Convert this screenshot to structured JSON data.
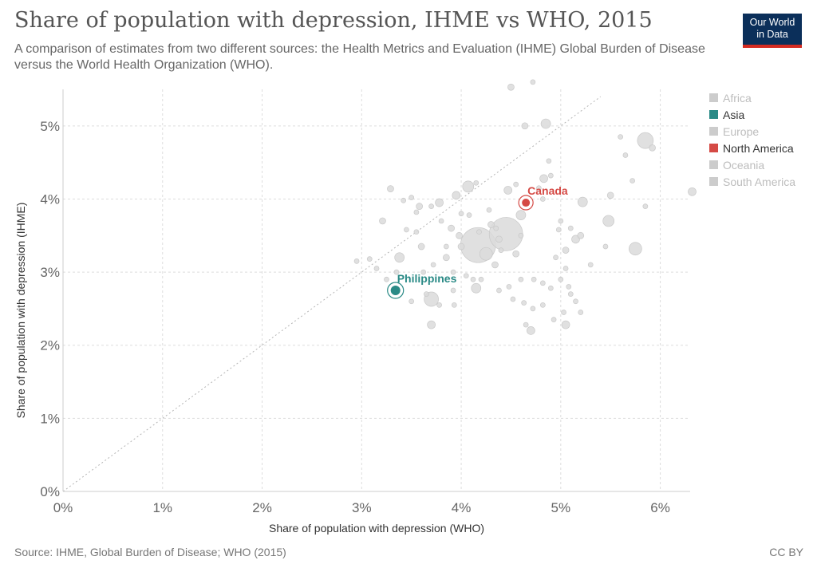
{
  "header": {
    "title": "Share of population with depression, IHME vs WHO, 2015",
    "subtitle": "A comparison of estimates from two different sources: the Health Metrics and Evaluation (IHME) Global Burden of Disease versus the World Health Organization (WHO).",
    "logo_line1": "Our World",
    "logo_line2": "in Data"
  },
  "footer": {
    "source": "Source: IHME, Global Burden of Disease; WHO (2015)",
    "license": "CC BY"
  },
  "legend": {
    "items": [
      {
        "label": "Africa",
        "color": "#cccccc",
        "active": false
      },
      {
        "label": "Asia",
        "color": "#2a8a86",
        "active": true
      },
      {
        "label": "Europe",
        "color": "#cccccc",
        "active": false
      },
      {
        "label": "North America",
        "color": "#d54a45",
        "active": true
      },
      {
        "label": "Oceania",
        "color": "#cccccc",
        "active": false
      },
      {
        "label": "South America",
        "color": "#cccccc",
        "active": false
      }
    ]
  },
  "chart_data": {
    "type": "scatter",
    "xlabel": "Share of population with depression (WHO)",
    "ylabel": "Share of population with depression (IHME)",
    "xlim": [
      0,
      6.3
    ],
    "ylim": [
      0,
      5.5
    ],
    "x_ticks": [
      "0%",
      "1%",
      "2%",
      "3%",
      "4%",
      "5%",
      "6%"
    ],
    "y_ticks": [
      "0%",
      "1%",
      "2%",
      "3%",
      "4%",
      "5%"
    ],
    "grid": true,
    "diagonal_reference": true,
    "highlighted": [
      {
        "name": "Canada",
        "x": 4.65,
        "y": 3.95,
        "color": "#d54a45",
        "r": 5
      },
      {
        "name": "Philippines",
        "x": 3.34,
        "y": 2.75,
        "color": "#2a8a86",
        "r": 6
      }
    ],
    "points": [
      {
        "x": 4.17,
        "y": 3.37,
        "r": 22
      },
      {
        "x": 4.45,
        "y": 3.52,
        "r": 21
      },
      {
        "x": 4.25,
        "y": 3.25,
        "r": 8
      },
      {
        "x": 3.7,
        "y": 2.63,
        "r": 9
      },
      {
        "x": 5.85,
        "y": 4.8,
        "r": 10
      },
      {
        "x": 5.75,
        "y": 3.32,
        "r": 8
      },
      {
        "x": 5.48,
        "y": 3.7,
        "r": 7
      },
      {
        "x": 4.07,
        "y": 4.17,
        "r": 7
      },
      {
        "x": 4.85,
        "y": 5.03,
        "r": 6
      },
      {
        "x": 4.15,
        "y": 2.78,
        "r": 6
      },
      {
        "x": 3.38,
        "y": 3.2,
        "r": 6
      },
      {
        "x": 3.78,
        "y": 3.95,
        "r": 5
      },
      {
        "x": 3.95,
        "y": 4.05,
        "r": 5
      },
      {
        "x": 4.6,
        "y": 3.78,
        "r": 6
      },
      {
        "x": 4.83,
        "y": 4.28,
        "r": 5
      },
      {
        "x": 4.7,
        "y": 2.2,
        "r": 5
      },
      {
        "x": 5.22,
        "y": 3.96,
        "r": 6
      },
      {
        "x": 5.05,
        "y": 2.28,
        "r": 5
      },
      {
        "x": 4.47,
        "y": 4.12,
        "r": 5
      },
      {
        "x": 3.7,
        "y": 2.28,
        "r": 5
      },
      {
        "x": 3.21,
        "y": 3.7,
        "r": 4
      },
      {
        "x": 3.29,
        "y": 4.14,
        "r": 4
      },
      {
        "x": 4.5,
        "y": 5.53,
        "r": 4
      },
      {
        "x": 4.64,
        "y": 5.0,
        "r": 4
      },
      {
        "x": 6.32,
        "y": 4.1,
        "r": 5
      },
      {
        "x": 5.92,
        "y": 4.7,
        "r": 4
      },
      {
        "x": 5.15,
        "y": 3.45,
        "r": 5
      },
      {
        "x": 5.2,
        "y": 3.5,
        "r": 4
      },
      {
        "x": 5.05,
        "y": 3.3,
        "r": 4
      },
      {
        "x": 5.5,
        "y": 4.05,
        "r": 4
      },
      {
        "x": 3.58,
        "y": 3.9,
        "r": 4
      },
      {
        "x": 3.9,
        "y": 3.6,
        "r": 4
      },
      {
        "x": 3.98,
        "y": 3.5,
        "r": 4
      },
      {
        "x": 4.0,
        "y": 3.35,
        "r": 4
      },
      {
        "x": 4.34,
        "y": 3.1,
        "r": 4
      },
      {
        "x": 4.38,
        "y": 3.45,
        "r": 4
      },
      {
        "x": 4.55,
        "y": 3.25,
        "r": 4
      },
      {
        "x": 4.3,
        "y": 3.65,
        "r": 4
      },
      {
        "x": 3.85,
        "y": 3.2,
        "r": 4
      },
      {
        "x": 3.6,
        "y": 3.35,
        "r": 4
      },
      {
        "x": 3.45,
        "y": 3.58,
        "r": 3
      },
      {
        "x": 3.55,
        "y": 3.82,
        "r": 3
      },
      {
        "x": 3.62,
        "y": 3.0,
        "r": 3
      },
      {
        "x": 3.72,
        "y": 3.1,
        "r": 3
      },
      {
        "x": 3.92,
        "y": 3.0,
        "r": 3
      },
      {
        "x": 4.12,
        "y": 2.9,
        "r": 3
      },
      {
        "x": 4.2,
        "y": 2.9,
        "r": 3
      },
      {
        "x": 4.05,
        "y": 2.95,
        "r": 3
      },
      {
        "x": 4.48,
        "y": 2.8,
        "r": 3
      },
      {
        "x": 4.6,
        "y": 2.9,
        "r": 3
      },
      {
        "x": 4.73,
        "y": 2.9,
        "r": 3
      },
      {
        "x": 4.82,
        "y": 2.85,
        "r": 3
      },
      {
        "x": 4.9,
        "y": 2.78,
        "r": 3
      },
      {
        "x": 5.0,
        "y": 2.9,
        "r": 3
      },
      {
        "x": 5.08,
        "y": 2.8,
        "r": 3
      },
      {
        "x": 5.15,
        "y": 2.6,
        "r": 3
      },
      {
        "x": 5.2,
        "y": 2.45,
        "r": 3
      },
      {
        "x": 5.03,
        "y": 2.45,
        "r": 3
      },
      {
        "x": 4.93,
        "y": 2.35,
        "r": 3
      },
      {
        "x": 4.63,
        "y": 2.58,
        "r": 3
      },
      {
        "x": 4.72,
        "y": 2.5,
        "r": 3
      },
      {
        "x": 4.52,
        "y": 2.63,
        "r": 3
      },
      {
        "x": 3.93,
        "y": 2.55,
        "r": 3
      },
      {
        "x": 3.78,
        "y": 2.55,
        "r": 3
      },
      {
        "x": 3.92,
        "y": 2.75,
        "r": 3
      },
      {
        "x": 3.65,
        "y": 2.7,
        "r": 3
      },
      {
        "x": 3.5,
        "y": 2.6,
        "r": 3
      },
      {
        "x": 3.25,
        "y": 2.9,
        "r": 3
      },
      {
        "x": 2.95,
        "y": 3.15,
        "r": 3
      },
      {
        "x": 3.08,
        "y": 3.18,
        "r": 3
      },
      {
        "x": 4.78,
        "y": 4.15,
        "r": 3
      },
      {
        "x": 4.82,
        "y": 4.0,
        "r": 3
      },
      {
        "x": 4.88,
        "y": 4.52,
        "r": 3
      },
      {
        "x": 4.9,
        "y": 4.32,
        "r": 3
      },
      {
        "x": 5.0,
        "y": 3.7,
        "r": 3
      },
      {
        "x": 5.1,
        "y": 3.6,
        "r": 3
      },
      {
        "x": 5.3,
        "y": 3.1,
        "r": 3
      },
      {
        "x": 5.45,
        "y": 3.35,
        "r": 3
      },
      {
        "x": 5.65,
        "y": 4.6,
        "r": 3
      },
      {
        "x": 5.72,
        "y": 4.25,
        "r": 3
      },
      {
        "x": 5.6,
        "y": 4.85,
        "r": 3
      },
      {
        "x": 5.85,
        "y": 3.9,
        "r": 3
      },
      {
        "x": 4.15,
        "y": 4.22,
        "r": 3
      },
      {
        "x": 4.28,
        "y": 3.85,
        "r": 3
      },
      {
        "x": 4.18,
        "y": 3.55,
        "r": 3
      },
      {
        "x": 3.8,
        "y": 3.7,
        "r": 3
      },
      {
        "x": 3.7,
        "y": 3.9,
        "r": 3
      },
      {
        "x": 3.42,
        "y": 3.98,
        "r": 3
      },
      {
        "x": 3.5,
        "y": 4.02,
        "r": 3
      },
      {
        "x": 4.08,
        "y": 3.78,
        "r": 3
      },
      {
        "x": 4.35,
        "y": 3.6,
        "r": 3
      },
      {
        "x": 4.55,
        "y": 4.2,
        "r": 3
      },
      {
        "x": 4.4,
        "y": 3.3,
        "r": 3
      },
      {
        "x": 5.05,
        "y": 3.05,
        "r": 3
      },
      {
        "x": 5.1,
        "y": 2.7,
        "r": 3
      },
      {
        "x": 4.38,
        "y": 2.75,
        "r": 3
      },
      {
        "x": 4.0,
        "y": 3.8,
        "r": 3
      },
      {
        "x": 3.15,
        "y": 3.05,
        "r": 3
      },
      {
        "x": 3.35,
        "y": 3.0,
        "r": 3
      },
      {
        "x": 4.65,
        "y": 2.28,
        "r": 3
      },
      {
        "x": 4.82,
        "y": 2.55,
        "r": 3
      },
      {
        "x": 4.95,
        "y": 3.2,
        "r": 3
      },
      {
        "x": 4.98,
        "y": 3.58,
        "r": 3
      },
      {
        "x": 4.72,
        "y": 5.6,
        "r": 3
      },
      {
        "x": 3.85,
        "y": 3.35,
        "r": 3
      },
      {
        "x": 3.55,
        "y": 3.55,
        "r": 3
      },
      {
        "x": 4.6,
        "y": 3.5,
        "r": 3
      }
    ]
  }
}
